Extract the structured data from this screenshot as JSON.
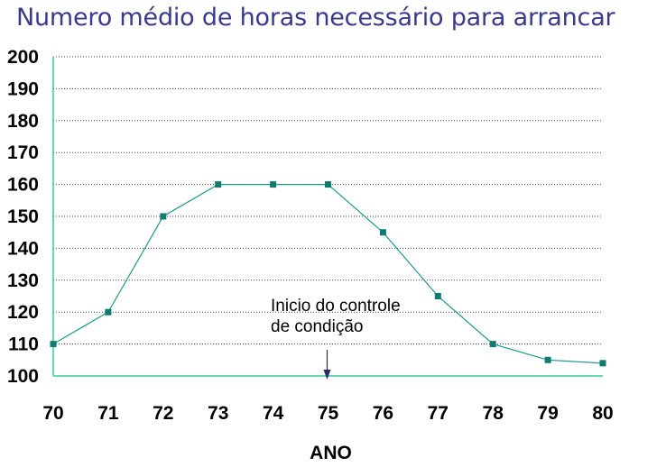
{
  "chart_data": {
    "type": "line",
    "title": "Numero médio de horas necessário para arrancar",
    "xlabel": "ANO",
    "ylabel": "",
    "x": [
      70,
      71,
      72,
      73,
      74,
      75,
      76,
      77,
      78,
      79,
      80
    ],
    "xticks": [
      "70",
      "71",
      "72",
      "73",
      "74",
      "75",
      "76",
      "77",
      "78",
      "79",
      "80"
    ],
    "yticks": [
      "100",
      "110",
      "120",
      "130",
      "140",
      "150",
      "160",
      "170",
      "180",
      "190",
      "200"
    ],
    "ylim": [
      100,
      200
    ],
    "xlim": [
      70,
      80
    ],
    "grid": "horizontal dotted",
    "series": [
      {
        "values": [
          110,
          120,
          150,
          160,
          160,
          160,
          145,
          125,
          110,
          105,
          104
        ]
      }
    ],
    "annotation": {
      "lines": [
        "Inicio do controle",
        "de condição"
      ],
      "x": 75,
      "arrow": "down"
    },
    "colors": {
      "line": "#1a9a8a",
      "marker": "#0f7a70",
      "axis": "#33cc99",
      "grid": "#444444",
      "title": "#3a3a8c",
      "arrow": "#2a2a66"
    }
  }
}
